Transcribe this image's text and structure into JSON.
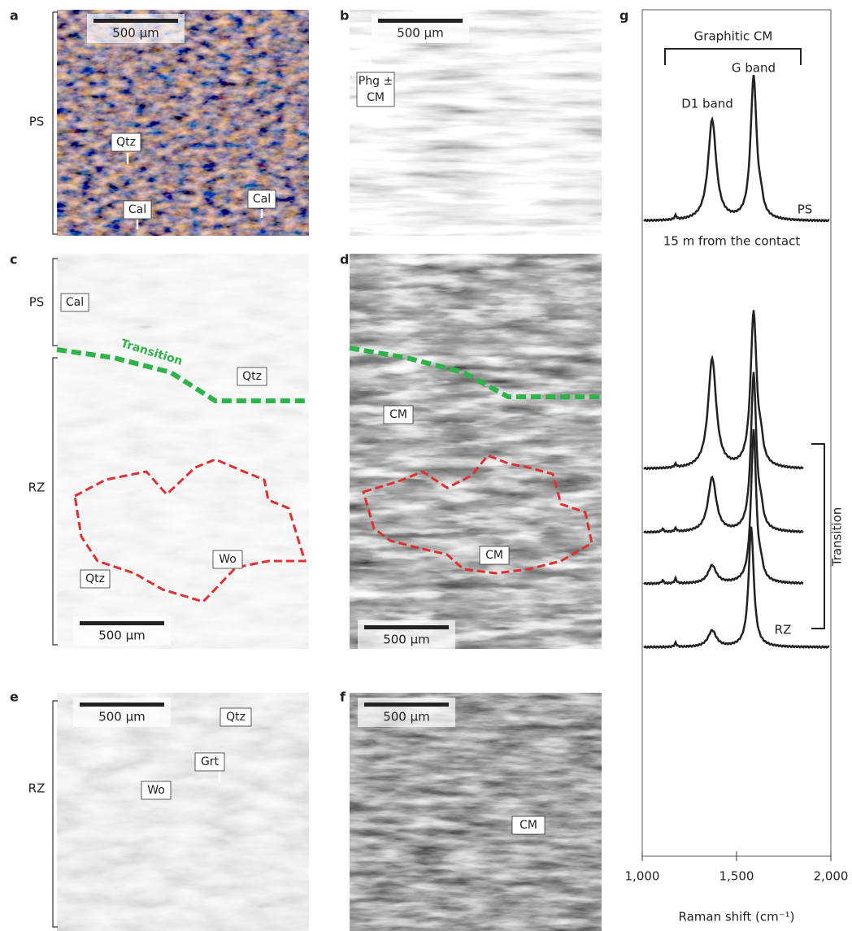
{
  "panels": [
    {
      "letter": "a",
      "zones": [
        "PS"
      ],
      "scale_bar": "500 µm",
      "labels": [
        "Qtz",
        "Cal",
        "Cal"
      ]
    },
    {
      "letter": "b",
      "scale_bar": "500 µm",
      "labels": [
        [
          "Phg ±",
          "CM"
        ]
      ]
    },
    {
      "letter": "c",
      "zones": [
        "PS",
        "RZ"
      ],
      "scale_bar": "500 µm",
      "labels": [
        "Cal",
        "Qtz",
        "Wo",
        "Qtz"
      ],
      "boundary": "Transition"
    },
    {
      "letter": "d",
      "scale_bar": "500 µm",
      "labels": [
        "CM",
        "CM"
      ]
    },
    {
      "letter": "e",
      "zones": [
        "RZ"
      ],
      "scale_bar": "500 µm",
      "labels": [
        "Qtz",
        "Grt",
        "Wo"
      ]
    },
    {
      "letter": "f",
      "scale_bar": "500 µm",
      "labels": [
        "CM"
      ]
    }
  ],
  "spectra": {
    "letter": "g",
    "group_label": "Graphitic CM",
    "peak_labels": [
      "D1 band",
      "G band"
    ],
    "spectrum_labels": [
      "PS",
      "RZ"
    ],
    "note": "15 m from the contact",
    "bracket_label": "Transition",
    "x_label": "Raman shift (cm⁻¹)",
    "xlim": [
      1000,
      2000
    ],
    "xticks": [
      {
        "value": 1000,
        "label": "1,000"
      },
      {
        "value": 1500,
        "label": "1,500"
      },
      {
        "value": 2000,
        "label": "2,000"
      }
    ]
  }
}
